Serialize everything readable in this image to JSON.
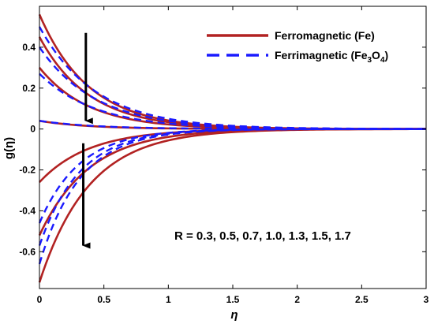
{
  "chart_data": {
    "type": "line",
    "xlabel": "η",
    "ylabel": "g(η)",
    "xlim": [
      0,
      3
    ],
    "ylim": [
      -0.78,
      0.6
    ],
    "x_ticks": [
      "0",
      "0.5",
      "1",
      "1.5",
      "2",
      "2.5",
      "3"
    ],
    "y_ticks": [
      "-0.6",
      "-0.4",
      "-0.2",
      "0",
      "0.2",
      "0.4"
    ],
    "legend_position": "top-right",
    "annotation": "R = 0.3, 0.5, 0.7, 1.0, 1.3, 1.5, 1.7",
    "series": [
      {
        "name": "Ferromagnetic (Fe)",
        "color": "#b22222",
        "style": "solid",
        "curves": [
          {
            "g0": 0.56,
            "decay": 2.6
          },
          {
            "g0": 0.45,
            "decay": 2.6
          },
          {
            "g0": 0.3,
            "decay": 2.6
          },
          {
            "g0": 0.04,
            "decay": 2.6
          },
          {
            "g0": -0.26,
            "decay": 2.6
          },
          {
            "g0": -0.52,
            "decay": 2.6
          },
          {
            "g0": -0.75,
            "decay": 2.6
          }
        ]
      },
      {
        "name": "Ferrimagnetic (Fe3O4)",
        "color": "#1a1aff",
        "style": "dashed",
        "curves": [
          {
            "g0": 0.5,
            "decay": 2.3
          },
          {
            "g0": 0.4,
            "decay": 2.3
          },
          {
            "g0": 0.27,
            "decay": 2.3
          },
          {
            "g0": 0.04,
            "decay": 2.3
          },
          {
            "g0": -0.46,
            "decay": 3.2
          },
          {
            "g0": -0.57,
            "decay": 3.2
          },
          {
            "g0": -0.66,
            "decay": 3.2
          }
        ]
      }
    ],
    "arrows": [
      {
        "x": 0.36,
        "y_from": 0.47,
        "y_to": 0.04
      },
      {
        "x": 0.34,
        "y_from": -0.07,
        "y_to": -0.57
      }
    ]
  },
  "legend": {
    "entry1": "Ferromagnetic (Fe)",
    "entry2_prefix": "Ferrimagnetic (Fe",
    "entry2_sub1": "3",
    "entry2_mid": "O",
    "entry2_sub2": "4",
    "entry2_suffix": ")"
  }
}
